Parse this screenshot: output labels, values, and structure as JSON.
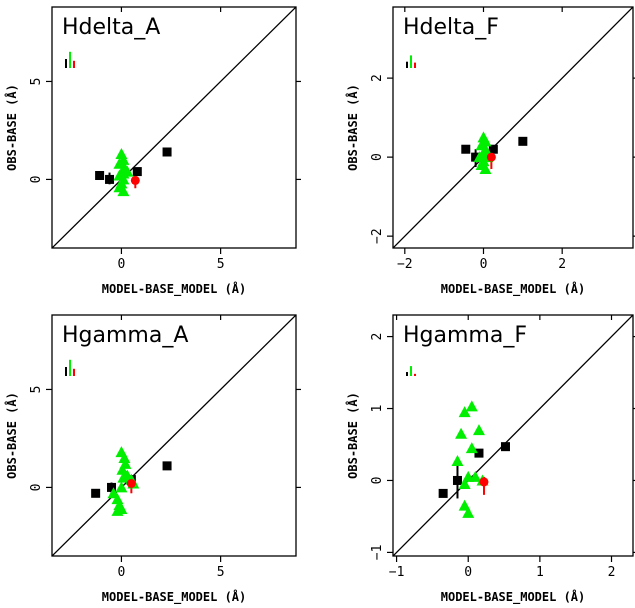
{
  "chart_data": [
    {
      "type": "scatter",
      "title": "Hdelta_A",
      "xlabel": "MODEL-BASE_MODEL (Å)",
      "ylabel": "OBS-BASE (Å)",
      "xlim": [
        -3.5,
        8.8
      ],
      "ylim": [
        -3.5,
        8.8
      ],
      "xticks": [
        {
          "v": 0,
          "label": "0"
        },
        {
          "v": 5,
          "label": "5"
        }
      ],
      "yticks": [
        {
          "v": 0,
          "label": "0"
        },
        {
          "v": 5,
          "label": "5"
        }
      ],
      "identity_line": true,
      "series": [
        {
          "marker": "square",
          "color": "#000000",
          "points": [
            {
              "x": -1.1,
              "y": 0.2
            },
            {
              "x": -0.6,
              "y": 0.0
            },
            {
              "x": 0.8,
              "y": 0.4
            },
            {
              "x": 2.3,
              "y": 1.4
            }
          ]
        },
        {
          "marker": "triangle",
          "color": "#00ee00",
          "points": [
            {
              "x": 0.0,
              "y": 1.3
            },
            {
              "x": 0.1,
              "y": 1.0
            },
            {
              "x": -0.1,
              "y": 0.8
            },
            {
              "x": 0.15,
              "y": 0.6
            },
            {
              "x": 0.3,
              "y": 0.4
            },
            {
              "x": 0.1,
              "y": 0.3
            },
            {
              "x": -0.1,
              "y": 0.2
            },
            {
              "x": 0.1,
              "y": 0.0
            },
            {
              "x": 0.0,
              "y": -0.2
            },
            {
              "x": -0.1,
              "y": -0.4
            },
            {
              "x": 0.1,
              "y": -0.6
            }
          ]
        },
        {
          "marker": "circle",
          "color": "#ff0000",
          "points": [
            {
              "x": 0.7,
              "y": -0.05
            }
          ]
        }
      ],
      "error_bars": [
        {
          "x": -0.6,
          "y0": -0.25,
          "y1": 0.35,
          "color": "#000000"
        },
        {
          "x": 0.0,
          "y0": -0.5,
          "y1": 0.6,
          "color": "#00cc00"
        },
        {
          "x": 0.7,
          "y0": -0.45,
          "y1": 0.3,
          "color": "#ff0000"
        }
      ],
      "legend_bars": [
        {
          "color": "#000000",
          "height": 0.5
        },
        {
          "color": "#00ee00",
          "height": 0.9
        },
        {
          "color": "#ff0000",
          "height": 0.4
        }
      ]
    },
    {
      "type": "scatter",
      "title": "Hdelta_F",
      "xlabel": "MODEL-BASE_MODEL (Å)",
      "ylabel": "OBS-BASE (Å)",
      "xlim": [
        -2.3,
        3.8
      ],
      "ylim": [
        -2.3,
        3.8
      ],
      "xticks": [
        {
          "v": -2,
          "label": "−2"
        },
        {
          "v": 0,
          "label": "0"
        },
        {
          "v": 2,
          "label": "2"
        }
      ],
      "yticks": [
        {
          "v": -2,
          "label": "−2"
        },
        {
          "v": 0,
          "label": "0"
        },
        {
          "v": 2,
          "label": "2"
        }
      ],
      "identity_line": true,
      "series": [
        {
          "marker": "square",
          "color": "#000000",
          "points": [
            {
              "x": -0.45,
              "y": 0.2
            },
            {
              "x": -0.2,
              "y": 0.0
            },
            {
              "x": 0.25,
              "y": 0.2
            },
            {
              "x": 1.0,
              "y": 0.4
            }
          ]
        },
        {
          "marker": "triangle",
          "color": "#00ee00",
          "points": [
            {
              "x": 0.0,
              "y": 0.5
            },
            {
              "x": 0.05,
              "y": 0.4
            },
            {
              "x": -0.05,
              "y": 0.3
            },
            {
              "x": 0.05,
              "y": 0.2
            },
            {
              "x": 0.0,
              "y": 0.1
            },
            {
              "x": -0.1,
              "y": 0.0
            },
            {
              "x": 0.1,
              "y": 0.0
            },
            {
              "x": 0.0,
              "y": -0.1
            },
            {
              "x": -0.05,
              "y": -0.2
            },
            {
              "x": 0.05,
              "y": -0.3
            }
          ]
        },
        {
          "marker": "circle",
          "color": "#ff0000",
          "points": [
            {
              "x": 0.2,
              "y": 0.0
            }
          ]
        }
      ],
      "error_bars": [
        {
          "x": -0.2,
          "y0": -0.25,
          "y1": 0.2,
          "color": "#000000"
        },
        {
          "x": 0.0,
          "y0": -0.35,
          "y1": 0.55,
          "color": "#00cc00"
        },
        {
          "x": 0.2,
          "y0": -0.3,
          "y1": 0.2,
          "color": "#ff0000"
        }
      ],
      "legend_bars": [
        {
          "color": "#000000",
          "height": 0.35
        },
        {
          "color": "#00ee00",
          "height": 0.7
        },
        {
          "color": "#ff0000",
          "height": 0.3
        }
      ]
    },
    {
      "type": "scatter",
      "title": "Hgamma_A",
      "xlabel": "MODEL-BASE_MODEL (Å)",
      "ylabel": "OBS-BASE (Å)",
      "xlim": [
        -3.5,
        8.8
      ],
      "ylim": [
        -3.5,
        8.8
      ],
      "xticks": [
        {
          "v": 0,
          "label": "0"
        },
        {
          "v": 5,
          "label": "5"
        }
      ],
      "yticks": [
        {
          "v": 0,
          "label": "0"
        },
        {
          "v": 5,
          "label": "5"
        }
      ],
      "identity_line": true,
      "series": [
        {
          "marker": "square",
          "color": "#000000",
          "points": [
            {
              "x": -1.3,
              "y": -0.3
            },
            {
              "x": -0.5,
              "y": 0.0
            },
            {
              "x": 0.5,
              "y": 0.4
            },
            {
              "x": 2.3,
              "y": 1.1
            }
          ]
        },
        {
          "marker": "triangle",
          "color": "#00ee00",
          "points": [
            {
              "x": 0.0,
              "y": 1.8
            },
            {
              "x": 0.15,
              "y": 1.5
            },
            {
              "x": 0.2,
              "y": 1.2
            },
            {
              "x": 0.05,
              "y": 0.9
            },
            {
              "x": 0.3,
              "y": 0.6
            },
            {
              "x": 0.1,
              "y": 0.5
            },
            {
              "x": 0.5,
              "y": 0.4
            },
            {
              "x": 0.6,
              "y": 0.2
            },
            {
              "x": 0.0,
              "y": 0.0
            },
            {
              "x": -0.4,
              "y": -0.3
            },
            {
              "x": -0.2,
              "y": -0.6
            },
            {
              "x": -0.1,
              "y": -0.9
            },
            {
              "x": -0.2,
              "y": -1.2
            },
            {
              "x": 0.0,
              "y": -1.1
            }
          ]
        },
        {
          "marker": "circle",
          "color": "#ff0000",
          "points": [
            {
              "x": 0.5,
              "y": 0.2
            }
          ]
        }
      ],
      "error_bars": [
        {
          "x": -0.5,
          "y0": -0.3,
          "y1": 0.25,
          "color": "#000000"
        },
        {
          "x": 0.5,
          "y0": -0.3,
          "y1": 0.5,
          "color": "#ff0000"
        }
      ],
      "legend_bars": [
        {
          "color": "#000000",
          "height": 0.5
        },
        {
          "color": "#00ee00",
          "height": 0.9
        },
        {
          "color": "#ff0000",
          "height": 0.4
        }
      ]
    },
    {
      "type": "scatter",
      "title": "Hgamma_F",
      "xlabel": "MODEL-BASE_MODEL (Å)",
      "ylabel": "OBS-BASE (Å)",
      "xlim": [
        -1.05,
        2.3
      ],
      "ylim": [
        -1.05,
        2.3
      ],
      "xticks": [
        {
          "v": -1,
          "label": "−1"
        },
        {
          "v": 0,
          "label": "0"
        },
        {
          "v": 1,
          "label": "1"
        },
        {
          "v": 2,
          "label": "2"
        }
      ],
      "yticks": [
        {
          "v": -1,
          "label": "−1"
        },
        {
          "v": 0,
          "label": "0"
        },
        {
          "v": 1,
          "label": "1"
        },
        {
          "v": 2,
          "label": "2"
        }
      ],
      "identity_line": true,
      "series": [
        {
          "marker": "square",
          "color": "#000000",
          "points": [
            {
              "x": -0.35,
              "y": -0.18
            },
            {
              "x": -0.15,
              "y": 0.0
            },
            {
              "x": 0.15,
              "y": 0.38
            },
            {
              "x": 0.52,
              "y": 0.47
            }
          ]
        },
        {
          "marker": "triangle",
          "color": "#00ee00",
          "points": [
            {
              "x": 0.05,
              "y": 1.03
            },
            {
              "x": -0.05,
              "y": 0.95
            },
            {
              "x": 0.15,
              "y": 0.7
            },
            {
              "x": -0.1,
              "y": 0.65
            },
            {
              "x": 0.05,
              "y": 0.45
            },
            {
              "x": -0.15,
              "y": 0.27
            },
            {
              "x": 0.0,
              "y": 0.05
            },
            {
              "x": 0.1,
              "y": 0.05
            },
            {
              "x": 0.2,
              "y": 0.0
            },
            {
              "x": -0.05,
              "y": -0.05
            },
            {
              "x": -0.05,
              "y": -0.35
            },
            {
              "x": 0.0,
              "y": -0.45
            }
          ]
        },
        {
          "marker": "circle",
          "color": "#ff0000",
          "points": [
            {
              "x": 0.22,
              "y": -0.02
            }
          ]
        }
      ],
      "error_bars": [
        {
          "x": -0.15,
          "y0": -0.25,
          "y1": 0.25,
          "color": "#000000"
        },
        {
          "x": 0.22,
          "y0": -0.2,
          "y1": 0.05,
          "color": "#ff0000"
        }
      ],
      "legend_bars": [
        {
          "color": "#000000",
          "height": 0.22
        },
        {
          "color": "#00ee00",
          "height": 0.55
        },
        {
          "color": "#ff0000",
          "height": 0.12
        }
      ]
    }
  ]
}
